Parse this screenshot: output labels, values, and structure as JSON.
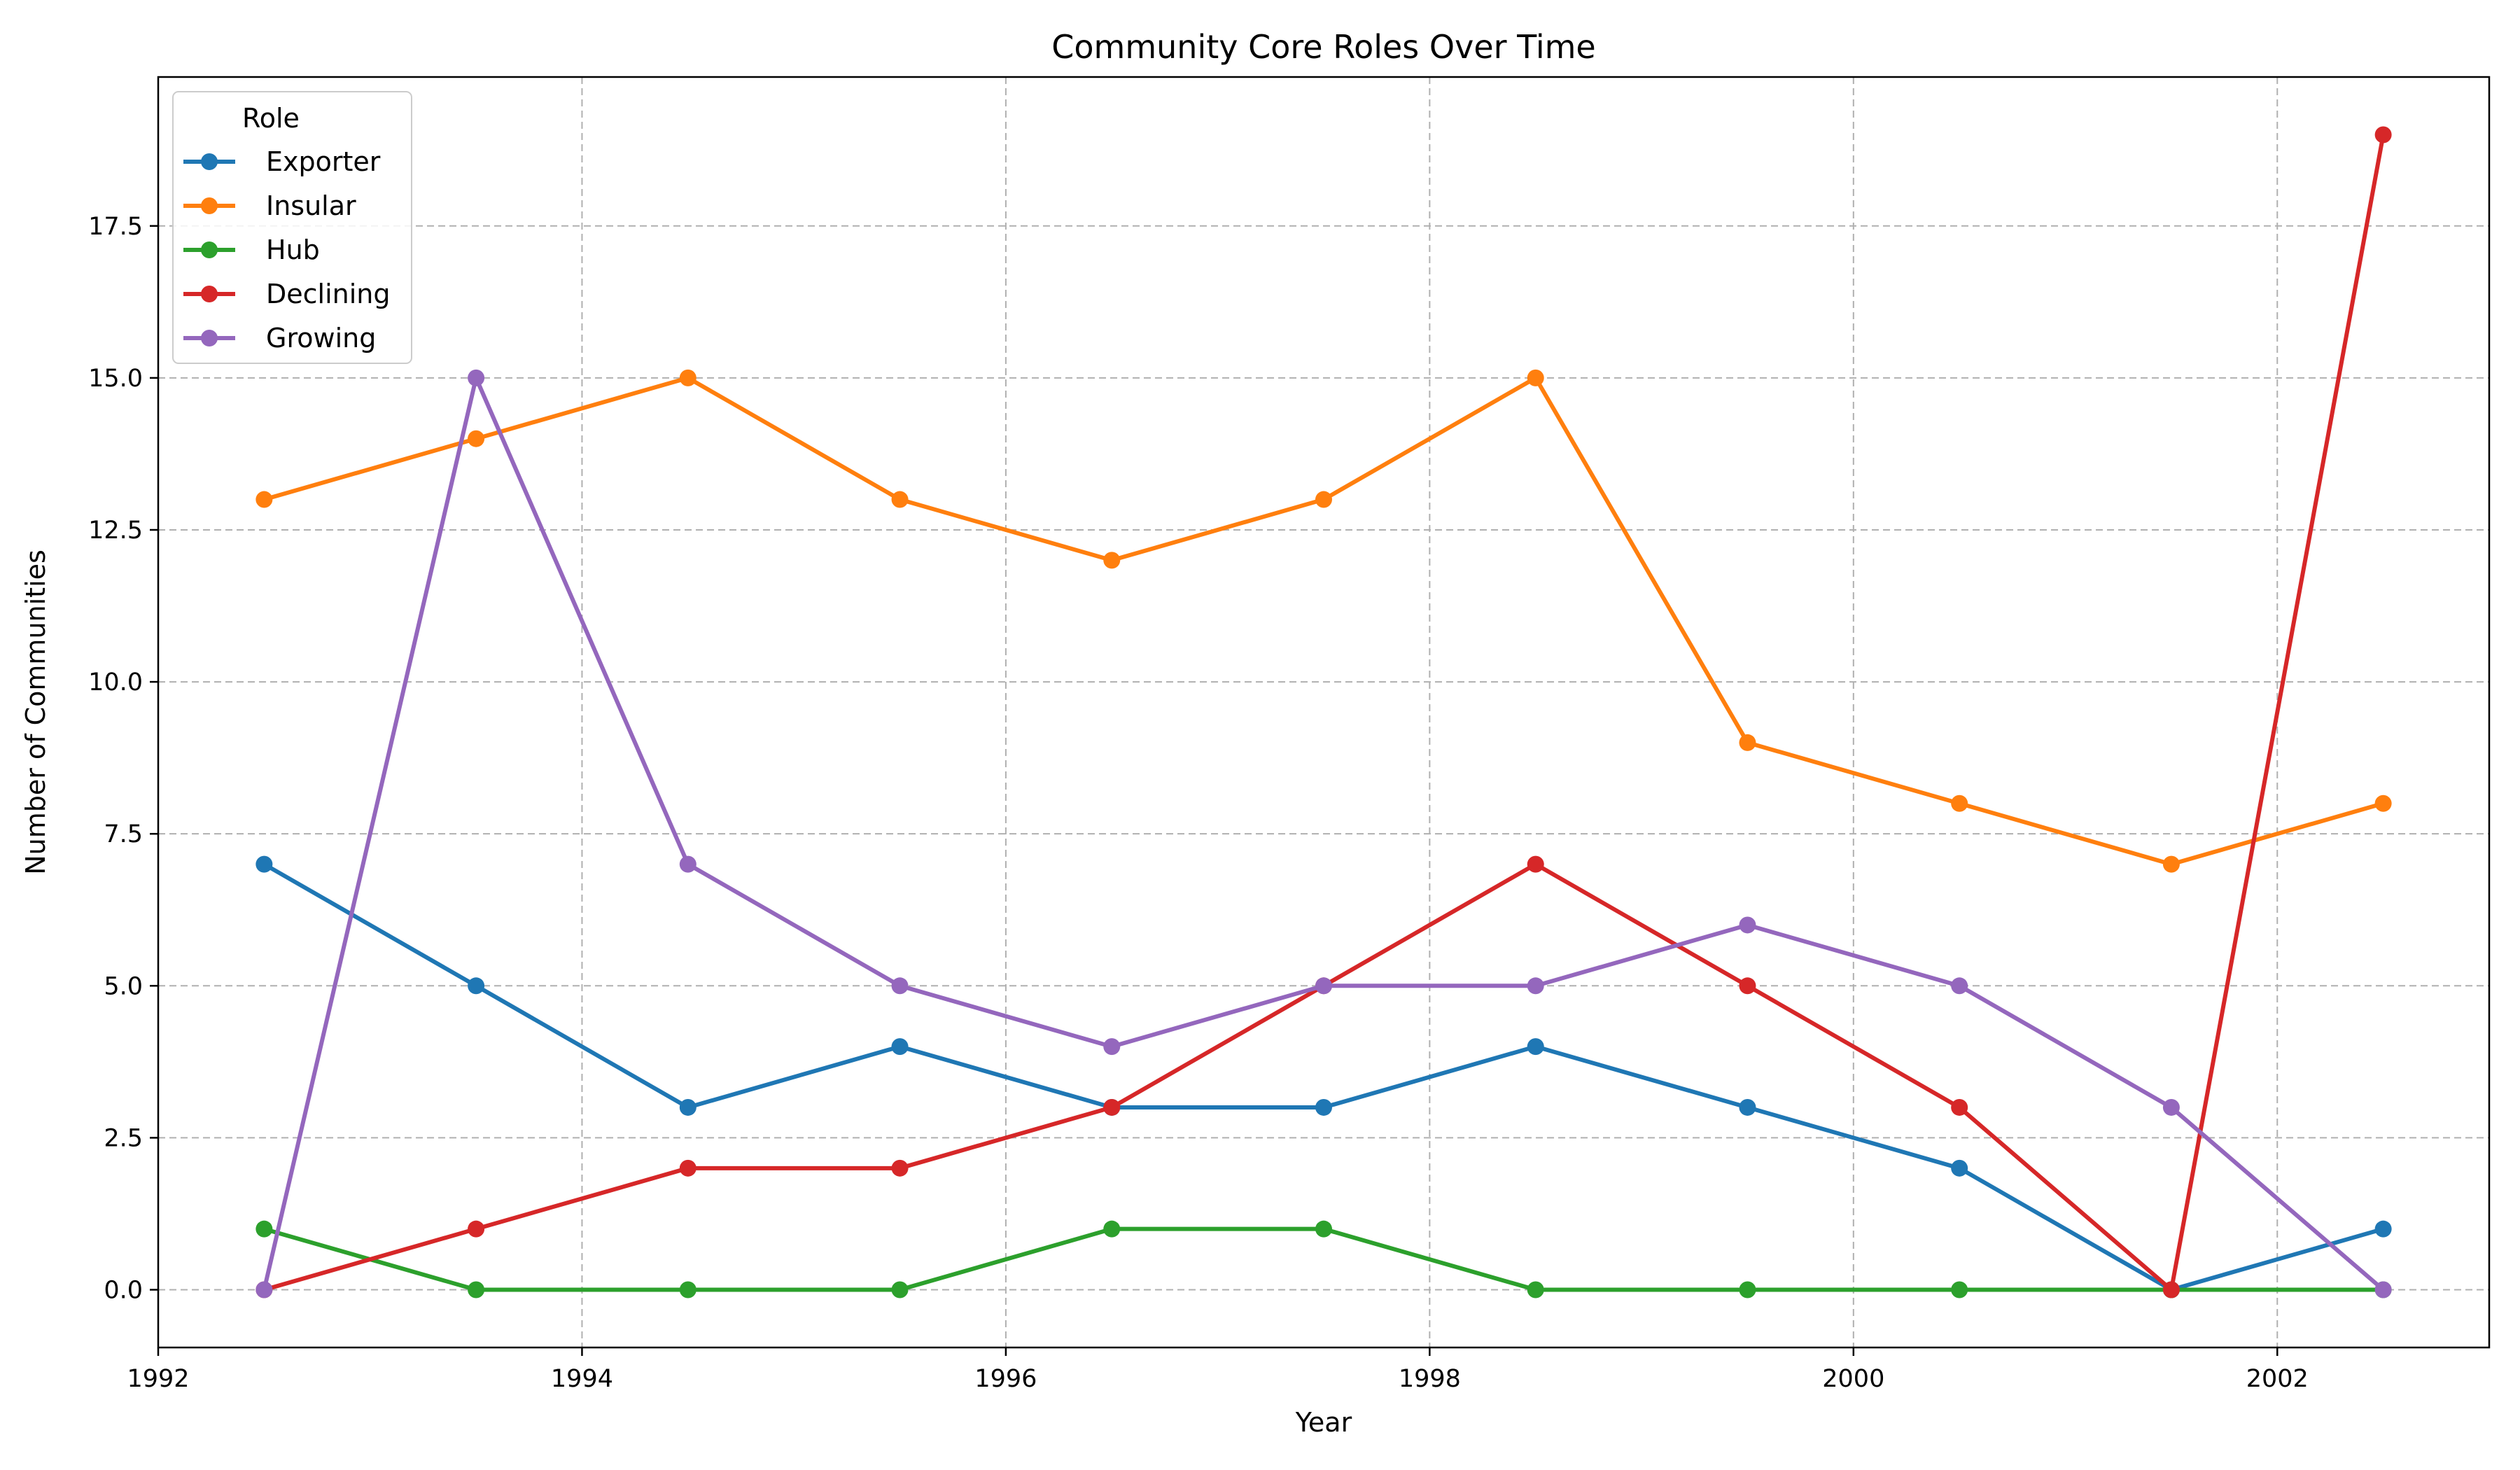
{
  "chart_data": {
    "type": "line",
    "title": "Community Core Roles Over Time",
    "xlabel": "Year",
    "ylabel": "Number of Communities",
    "xlim": [
      1992,
      2003
    ],
    "ylim": [
      -0.95,
      19.95
    ],
    "xticks": [
      1992,
      1994,
      1996,
      1998,
      2000,
      2002
    ],
    "xtick_labels": [
      "1992",
      "1994",
      "1996",
      "1998",
      "2000",
      "2002"
    ],
    "yticks": [
      0,
      2.5,
      5,
      7.5,
      10,
      12.5,
      15,
      17.5
    ],
    "ytick_labels": [
      "0.0",
      "2.5",
      "5.0",
      "7.5",
      "10.0",
      "12.5",
      "15.0",
      "17.5"
    ],
    "grid": true,
    "legend": {
      "title": "Role",
      "placement": "top-left"
    },
    "x": [
      1992.5,
      1993.5,
      1994.5,
      1995.5,
      1996.5,
      1997.5,
      1998.5,
      1999.5,
      2000.5,
      2001.5,
      2002.5
    ],
    "series": [
      {
        "name": "Exporter",
        "color": "#1f77b4",
        "values": [
          7,
          5,
          3,
          4,
          3,
          3,
          4,
          3,
          2,
          0,
          1
        ]
      },
      {
        "name": "Insular",
        "color": "#ff7f0e",
        "values": [
          13,
          14,
          15,
          13,
          12,
          13,
          15,
          9,
          8,
          7,
          8
        ]
      },
      {
        "name": "Hub",
        "color": "#2ca02c",
        "values": [
          1,
          0,
          0,
          0,
          1,
          1,
          0,
          0,
          0,
          0,
          0
        ]
      },
      {
        "name": "Declining",
        "color": "#d62728",
        "values": [
          0,
          1,
          2,
          2,
          3,
          5,
          7,
          5,
          3,
          0,
          19
        ]
      },
      {
        "name": "Growing",
        "color": "#9467bd",
        "values": [
          0,
          15,
          7,
          5,
          4,
          5,
          5,
          6,
          5,
          3,
          0
        ]
      }
    ]
  }
}
